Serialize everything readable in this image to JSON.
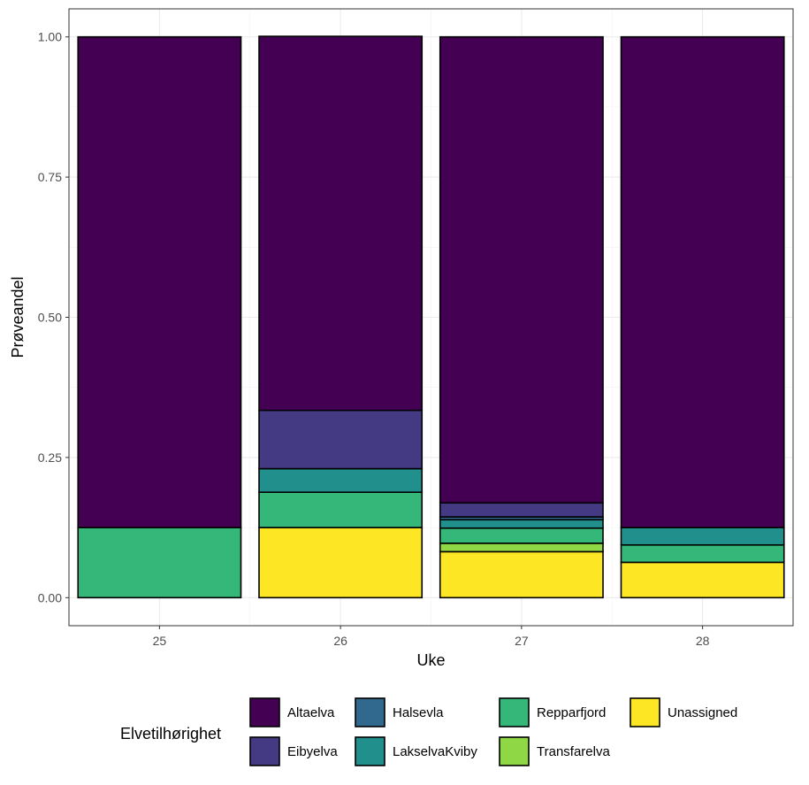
{
  "chart_data": {
    "type": "bar",
    "stacked": true,
    "title": "",
    "xlabel": "Uke",
    "ylabel": "Prøveandel",
    "ylim": [
      -0.05,
      1.05
    ],
    "yticks": [
      0.0,
      0.25,
      0.5,
      0.75,
      1.0
    ],
    "ytick_labels": [
      "0.00",
      "0.25",
      "0.50",
      "0.75",
      "1.00"
    ],
    "categories": [
      "25",
      "26",
      "27",
      "28"
    ],
    "grid": true,
    "legend_title": "Elvetilhørighet",
    "legend_position": "bottom",
    "stack_order": [
      "Unassigned",
      "Transfarelva",
      "Repparfjord",
      "LakselvaKviby",
      "Halsevla",
      "Eibyelva",
      "Altaelva"
    ],
    "series": [
      {
        "name": "Altaelva",
        "color": "#440154",
        "values": [
          0.875,
          0.667,
          0.831,
          0.875
        ]
      },
      {
        "name": "Eibyelva",
        "color": "#443A83",
        "values": [
          0.0,
          0.104,
          0.025,
          0.0
        ]
      },
      {
        "name": "Halsevla",
        "color": "#31688E",
        "values": [
          0.0,
          0.0,
          0.005,
          0.0
        ]
      },
      {
        "name": "LakselvaKviby",
        "color": "#21908C",
        "values": [
          0.0,
          0.042,
          0.015,
          0.031
        ]
      },
      {
        "name": "Repparfjord",
        "color": "#35B779",
        "values": [
          0.125,
          0.063,
          0.027,
          0.031
        ]
      },
      {
        "name": "Transfarelva",
        "color": "#8FD744",
        "values": [
          0.0,
          0.0,
          0.015,
          0.0
        ]
      },
      {
        "name": "Unassigned",
        "color": "#FDE725",
        "values": [
          0.0,
          0.125,
          0.082,
          0.063
        ]
      }
    ]
  }
}
